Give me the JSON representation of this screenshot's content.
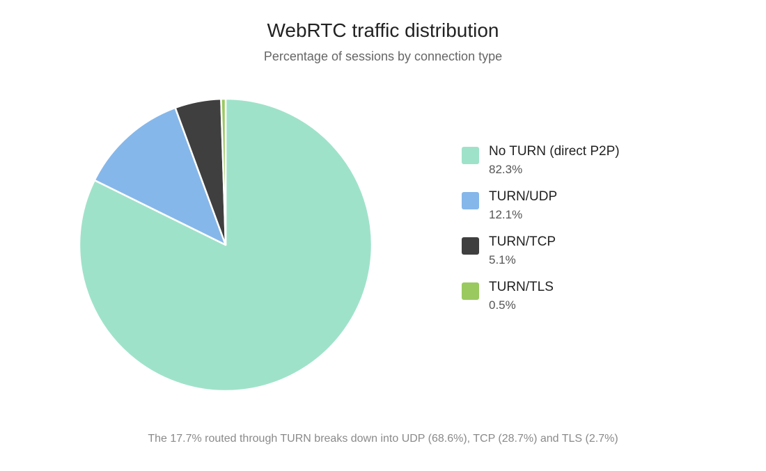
{
  "chart_data": {
    "type": "pie",
    "title": "WebRTC traffic distribution",
    "subtitle": "Percentage of sessions by connection type",
    "slices": [
      {
        "label": "No TURN (direct P2P)",
        "value": 82.3,
        "value_label": "82.3%",
        "color": "#9fe2ca"
      },
      {
        "label": "TURN/UDP",
        "value": 12.1,
        "value_label": "12.1%",
        "color": "#86b7ea"
      },
      {
        "label": "TURN/TCP",
        "value": 5.1,
        "value_label": "5.1%",
        "color": "#3f3f3f"
      },
      {
        "label": "TURN/TLS",
        "value": 0.5,
        "value_label": "0.5%",
        "color": "#9ac95f"
      }
    ],
    "legend_position": "right",
    "footnote": "The 17.7% routed through TURN breaks down into UDP (68.6%), TCP (28.7%) and TLS (2.7%)"
  }
}
